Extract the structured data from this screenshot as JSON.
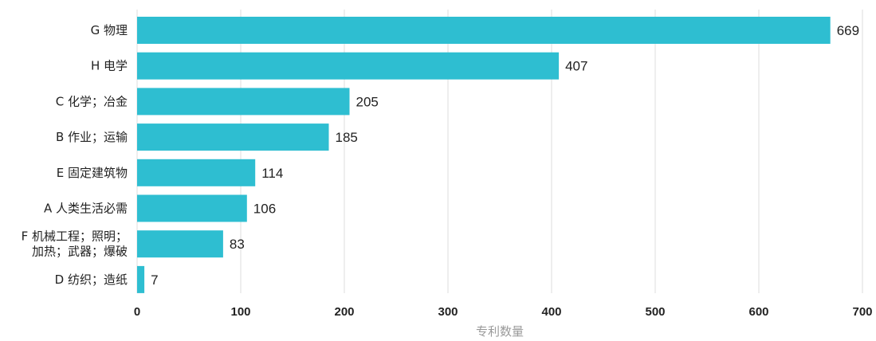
{
  "chart_data": {
    "type": "bar",
    "orientation": "horizontal",
    "categories": [
      [
        "G 物理"
      ],
      [
        "H 电学"
      ],
      [
        "C 化学；冶金"
      ],
      [
        "B 作业；运输"
      ],
      [
        "E 固定建筑物"
      ],
      [
        "A 人类生活必需"
      ],
      [
        "F 机械工程；照明；",
        "加热；武器；爆破"
      ],
      [
        "D 纺织；造纸"
      ]
    ],
    "values": [
      669,
      407,
      205,
      185,
      114,
      106,
      83,
      7
    ],
    "xlabel": "专利数量",
    "ylabel": "",
    "xlim": [
      0,
      700
    ],
    "xticks": [
      0,
      100,
      200,
      300,
      400,
      500,
      600,
      700
    ],
    "grid": "vertical",
    "data_labels": true,
    "bar_color": "#2ebed1",
    "grid_color": "#dcdcdc"
  }
}
